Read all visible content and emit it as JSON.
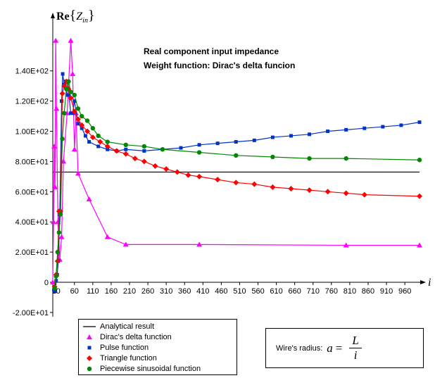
{
  "chart_data": {
    "type": "line",
    "title_lines": [
      "Real component input impedance",
      "Weight function: Dirac's delta funcion"
    ],
    "ylabel": {
      "main": "Re",
      "sym": "Z",
      "sub": "in"
    },
    "xlabel": "i",
    "xlim": [
      1,
      1000
    ],
    "ylim": [
      -20,
      160
    ],
    "x_ticks": [
      "10",
      "60",
      "110",
      "160",
      "210",
      "260",
      "310",
      "360",
      "410",
      "460",
      "510",
      "560",
      "610",
      "660",
      "710",
      "760",
      "810",
      "860",
      "910",
      "960"
    ],
    "x_tick_values": [
      10,
      60,
      110,
      160,
      210,
      260,
      310,
      360,
      410,
      460,
      510,
      560,
      610,
      660,
      710,
      760,
      810,
      860,
      910,
      960
    ],
    "y_ticks": [
      "-2.00E+01",
      "0",
      "2.00E+01",
      "4.00E+01",
      "6.00E+01",
      "8.00E+01",
      "1.00E+02",
      "1.20E+02",
      "1.40E+02"
    ],
    "y_tick_values": [
      -20,
      0,
      20,
      40,
      60,
      80,
      100,
      120,
      140
    ],
    "grid": false,
    "legend_placement": "bottom-left",
    "series": [
      {
        "name": "Analytical result",
        "color": "#000000",
        "marker": "none",
        "x": [
          1,
          1000
        ],
        "y": [
          73,
          73
        ]
      },
      {
        "name": "Dirac's delta function",
        "color": "#ff00ff",
        "marker": "triangle",
        "x": [
          1,
          3,
          5,
          7,
          9,
          11,
          15,
          20,
          25,
          30,
          40,
          50,
          55,
          60,
          64,
          70,
          100,
          150,
          200,
          400,
          800,
          1000
        ],
        "y": [
          0,
          40,
          90,
          63,
          160,
          115,
          40,
          15,
          30,
          80,
          112,
          160,
          138,
          88,
          112,
          72,
          55,
          30,
          25,
          25,
          24.5,
          24.5
        ]
      },
      {
        "name": "Pulse function",
        "color": "#0033cc",
        "marker": "square",
        "x": [
          4,
          7,
          10,
          13,
          16,
          20,
          25,
          28,
          32,
          36,
          40,
          45,
          50,
          55,
          60,
          70,
          80,
          90,
          100,
          125,
          150,
          175,
          200,
          250,
          300,
          350,
          400,
          450,
          500,
          550,
          600,
          650,
          700,
          750,
          800,
          850,
          900,
          950,
          1000
        ],
        "y": [
          -5,
          -6,
          1,
          5,
          14,
          45,
          120,
          138,
          131,
          133,
          124,
          124,
          112,
          112,
          120,
          105,
          102,
          97,
          93,
          90,
          88,
          87,
          88,
          87,
          88,
          89,
          91,
          92,
          93,
          94,
          96,
          97,
          98,
          100,
          101,
          102,
          103,
          104,
          106
        ]
      },
      {
        "name": "Triangle function",
        "color": "#ff0000",
        "marker": "diamond",
        "x": [
          6,
          10,
          14,
          18,
          22,
          27,
          32,
          38,
          44,
          50,
          60,
          70,
          80,
          95,
          110,
          130,
          150,
          175,
          200,
          225,
          250,
          280,
          310,
          340,
          370,
          400,
          450,
          500,
          550,
          600,
          650,
          700,
          750,
          800,
          850,
          1000
        ],
        "y": [
          -3,
          5,
          14,
          47,
          47,
          125,
          130,
          133,
          128,
          122,
          113,
          108,
          104,
          100,
          96,
          93,
          90,
          87,
          85,
          82,
          80,
          77,
          75,
          73,
          71,
          70,
          68,
          66,
          65,
          63,
          62,
          61,
          60,
          59,
          58,
          57
        ]
      },
      {
        "name": "Piecewise sinusoidal function",
        "color": "#008800",
        "marker": "circle",
        "x": [
          6,
          10,
          14,
          18,
          22,
          27,
          32,
          38,
          44,
          50,
          60,
          70,
          80,
          95,
          110,
          125,
          150,
          200,
          250,
          300,
          400,
          500,
          600,
          700,
          800,
          1000
        ],
        "y": [
          -4,
          4,
          20,
          33,
          45,
          95,
          112,
          128,
          133,
          126,
          124,
          115,
          110,
          107,
          102,
          97,
          93,
          91,
          90,
          88,
          86,
          84,
          83,
          82,
          82,
          81
        ]
      }
    ]
  },
  "legend_items": [
    {
      "label": "Analytical result",
      "kind": "line"
    },
    {
      "label": "Dirac's delta function",
      "kind": "triangle"
    },
    {
      "label": "Pulse function",
      "kind": "square"
    },
    {
      "label": "Triangle function",
      "kind": "diamond"
    },
    {
      "label": "Piecewise sinusoidal function",
      "kind": "circle"
    }
  ],
  "legend_colors": {
    "line": "#000000",
    "triangle": "#ff00ff",
    "square": "#0033cc",
    "diamond": "#ff0000",
    "circle": "#008800"
  },
  "radius_box": {
    "label": "Wire's radius:",
    "lhs": "a",
    "eq": "=",
    "numerator": "L",
    "denominator": "i"
  }
}
